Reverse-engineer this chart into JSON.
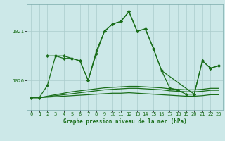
{
  "background_color": "#cce8e8",
  "plot_bg_color": "#cce8e8",
  "grid_color": "#aacccc",
  "line_color": "#1a6e1a",
  "title": "Graphe pression niveau de la mer (hPa)",
  "ylim": [
    1019.4,
    1021.55
  ],
  "xlim": [
    -0.5,
    23.5
  ],
  "yticks": [
    1020,
    1021
  ],
  "xticks": [
    0,
    1,
    2,
    3,
    4,
    5,
    6,
    7,
    8,
    9,
    10,
    11,
    12,
    13,
    14,
    15,
    16,
    17,
    18,
    19,
    20,
    21,
    22,
    23
  ],
  "line1_x": [
    0,
    1,
    2,
    3,
    4,
    5,
    6,
    7,
    8,
    9,
    10,
    11,
    12,
    13,
    14,
    15,
    16,
    17,
    18,
    19,
    20,
    21,
    22,
    23
  ],
  "line1_y": [
    1019.65,
    1019.65,
    1019.9,
    1020.5,
    1020.5,
    1020.45,
    1020.4,
    1020.0,
    1020.6,
    1021.0,
    1021.15,
    1021.2,
    1021.4,
    1021.0,
    1021.05,
    1020.65,
    1020.2,
    1019.85,
    1019.8,
    1019.72,
    1019.72,
    1020.4,
    1020.25,
    1020.3
  ],
  "line2_x": [
    2,
    3,
    4,
    5,
    6,
    7,
    8,
    9,
    10,
    11,
    12,
    13,
    14,
    15,
    16,
    20,
    21,
    22,
    23
  ],
  "line2_y": [
    1020.5,
    1020.5,
    1020.45,
    1020.45,
    1020.4,
    1020.0,
    1020.55,
    1021.0,
    1021.15,
    1021.2,
    1021.4,
    1021.0,
    1021.05,
    1020.65,
    1020.2,
    1019.72,
    1020.4,
    1020.25,
    1020.3
  ],
  "flat1_x": [
    0,
    1,
    2,
    3,
    4,
    5,
    6,
    7,
    8,
    9,
    10,
    11,
    12,
    13,
    14,
    15,
    16,
    17,
    18,
    19,
    20,
    21,
    22,
    23
  ],
  "flat1_y": [
    1019.65,
    1019.65,
    1019.68,
    1019.71,
    1019.74,
    1019.77,
    1019.79,
    1019.81,
    1019.83,
    1019.85,
    1019.86,
    1019.87,
    1019.88,
    1019.88,
    1019.87,
    1019.86,
    1019.85,
    1019.83,
    1019.82,
    1019.81,
    1019.81,
    1019.82,
    1019.84,
    1019.84
  ],
  "flat2_x": [
    0,
    1,
    2,
    3,
    4,
    5,
    6,
    7,
    8,
    9,
    10,
    11,
    12,
    13,
    14,
    15,
    16,
    17,
    18,
    19,
    20,
    21,
    22,
    23
  ],
  "flat2_y": [
    1019.65,
    1019.65,
    1019.67,
    1019.69,
    1019.71,
    1019.73,
    1019.75,
    1019.77,
    1019.79,
    1019.81,
    1019.82,
    1019.83,
    1019.84,
    1019.84,
    1019.83,
    1019.82,
    1019.81,
    1019.79,
    1019.78,
    1019.77,
    1019.77,
    1019.78,
    1019.8,
    1019.8
  ],
  "flat3_x": [
    0,
    1,
    2,
    3,
    4,
    5,
    6,
    7,
    8,
    9,
    10,
    11,
    12,
    13,
    14,
    15,
    16,
    17,
    18,
    19,
    20,
    21,
    22,
    23
  ],
  "flat3_y": [
    1019.65,
    1019.65,
    1019.66,
    1019.67,
    1019.68,
    1019.69,
    1019.7,
    1019.71,
    1019.72,
    1019.73,
    1019.74,
    1019.74,
    1019.75,
    1019.74,
    1019.73,
    1019.72,
    1019.71,
    1019.7,
    1019.69,
    1019.68,
    1019.68,
    1019.69,
    1019.71,
    1019.71
  ]
}
